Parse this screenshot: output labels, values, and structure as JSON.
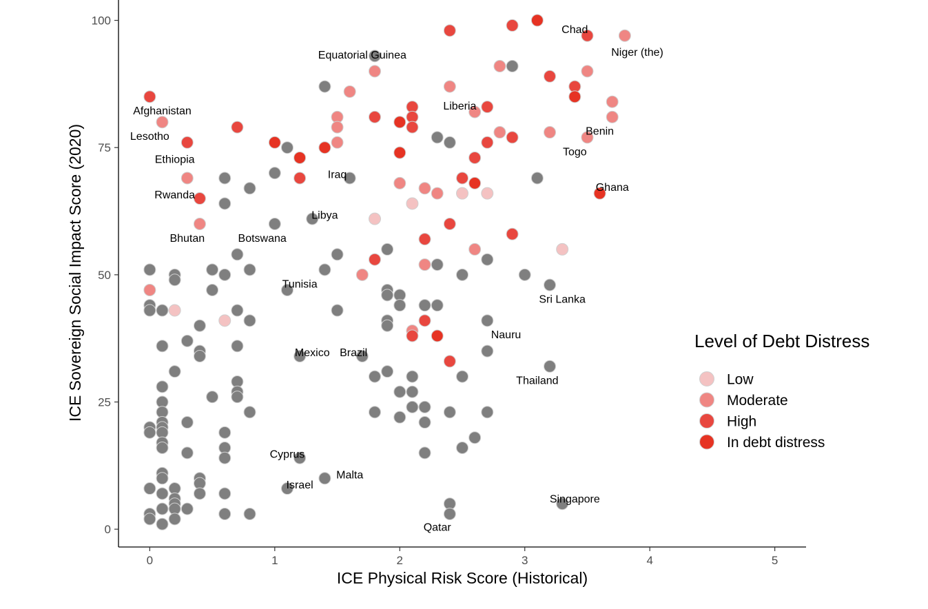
{
  "chart_data": {
    "type": "scatter",
    "xlabel": "ICE Physical Risk Score (Historical)",
    "ylabel": "ICE Sovereign Social Impact Score (2020)",
    "xlim": [
      -0.25,
      5.25
    ],
    "ylim": [
      -3.5,
      104
    ],
    "x_ticks": [
      0,
      1,
      2,
      3,
      4,
      5
    ],
    "y_ticks": [
      0,
      25,
      50,
      75,
      100
    ],
    "grid": false,
    "legend": {
      "title": "Level of Debt Distress",
      "position": "right",
      "entries": [
        {
          "label": "Low",
          "color": "#f4c2c2"
        },
        {
          "label": "Moderate",
          "color": "#ef8683"
        },
        {
          "label": "High",
          "color": "#e8473f"
        },
        {
          "label": "In debt distress",
          "color": "#e63323"
        }
      ]
    },
    "colors": {
      "none": "#7f7f7f",
      "low": "#f4c2c2",
      "moderate": "#ef8683",
      "high": "#e8473f",
      "distress": "#e63323"
    },
    "points": [
      [
        0,
        85,
        "high"
      ],
      [
        0.1,
        80,
        "moderate"
      ],
      [
        0.3,
        76,
        "high"
      ],
      [
        0.3,
        69,
        "moderate"
      ],
      [
        0.4,
        65,
        "high"
      ],
      [
        0.4,
        60,
        "moderate"
      ],
      [
        0.7,
        79,
        "high"
      ],
      [
        1.0,
        76,
        "distress"
      ],
      [
        1.2,
        73,
        "distress"
      ],
      [
        1.2,
        69,
        "high"
      ],
      [
        1.4,
        75,
        "distress"
      ],
      [
        1.5,
        81,
        "moderate"
      ],
      [
        1.5,
        79,
        "moderate"
      ],
      [
        1.5,
        76,
        "moderate"
      ],
      [
        1.6,
        86,
        "moderate"
      ],
      [
        1.8,
        90,
        "moderate"
      ],
      [
        1.8,
        81,
        "high"
      ],
      [
        2.0,
        80,
        "distress"
      ],
      [
        2.0,
        74,
        "distress"
      ],
      [
        2.1,
        83,
        "high"
      ],
      [
        2.1,
        81,
        "high"
      ],
      [
        2.1,
        79,
        "high"
      ],
      [
        2.0,
        68,
        "moderate"
      ],
      [
        2.1,
        64,
        "low"
      ],
      [
        2.2,
        67,
        "moderate"
      ],
      [
        2.3,
        66,
        "moderate"
      ],
      [
        2.4,
        98,
        "high"
      ],
      [
        2.4,
        87,
        "moderate"
      ],
      [
        2.5,
        69,
        "high"
      ],
      [
        2.5,
        66,
        "low"
      ],
      [
        2.6,
        82,
        "moderate"
      ],
      [
        2.6,
        73,
        "high"
      ],
      [
        2.6,
        68,
        "distress"
      ],
      [
        2.7,
        83,
        "high"
      ],
      [
        2.7,
        76,
        "high"
      ],
      [
        2.7,
        66,
        "low"
      ],
      [
        2.8,
        91,
        "moderate"
      ],
      [
        2.8,
        78,
        "moderate"
      ],
      [
        2.9,
        99,
        "high"
      ],
      [
        2.9,
        77,
        "high"
      ],
      [
        3.1,
        100,
        "distress"
      ],
      [
        3.2,
        89,
        "high"
      ],
      [
        3.2,
        78,
        "moderate"
      ],
      [
        3.4,
        87,
        "high"
      ],
      [
        3.4,
        85,
        "distress"
      ],
      [
        3.5,
        97,
        "high"
      ],
      [
        3.5,
        90,
        "moderate"
      ],
      [
        3.5,
        77,
        "moderate"
      ],
      [
        3.7,
        84,
        "moderate"
      ],
      [
        3.7,
        81,
        "moderate"
      ],
      [
        3.8,
        97,
        "moderate"
      ],
      [
        3.6,
        66,
        "distress"
      ],
      [
        3.3,
        55,
        "low"
      ],
      [
        2.9,
        58,
        "high"
      ],
      [
        2.6,
        55,
        "moderate"
      ],
      [
        2.4,
        60,
        "high"
      ],
      [
        2.2,
        57,
        "high"
      ],
      [
        2.2,
        52,
        "moderate"
      ],
      [
        1.8,
        61,
        "low"
      ],
      [
        1.8,
        53,
        "high"
      ],
      [
        1.7,
        50,
        "moderate"
      ],
      [
        2.2,
        41,
        "high"
      ],
      [
        2.1,
        39,
        "moderate"
      ],
      [
        2.1,
        38,
        "high"
      ],
      [
        2.3,
        38,
        "distress"
      ],
      [
        2.4,
        33,
        "high"
      ],
      [
        0,
        47,
        "moderate"
      ],
      [
        0.2,
        43,
        "low"
      ],
      [
        0.6,
        41,
        "low"
      ],
      [
        1.8,
        93,
        "none"
      ],
      [
        1.4,
        87,
        "none"
      ],
      [
        2.9,
        91,
        "none"
      ],
      [
        2.3,
        77,
        "none"
      ],
      [
        2.4,
        76,
        "none"
      ],
      [
        1.1,
        75,
        "none"
      ],
      [
        1.0,
        70,
        "none"
      ],
      [
        0.6,
        69,
        "none"
      ],
      [
        0.8,
        67,
        "none"
      ],
      [
        0.6,
        64,
        "none"
      ],
      [
        1.6,
        69,
        "none"
      ],
      [
        3.1,
        69,
        "none"
      ],
      [
        1.3,
        61,
        "none"
      ],
      [
        1.0,
        60,
        "none"
      ],
      [
        0.7,
        54,
        "none"
      ],
      [
        1.5,
        54,
        "none"
      ],
      [
        1.9,
        55,
        "none"
      ],
      [
        2.3,
        52,
        "none"
      ],
      [
        2.7,
        53,
        "none"
      ],
      [
        2.5,
        50,
        "none"
      ],
      [
        3.0,
        50,
        "none"
      ],
      [
        3.2,
        48,
        "none"
      ],
      [
        0,
        51,
        "none"
      ],
      [
        0.2,
        50,
        "none"
      ],
      [
        0.2,
        49,
        "none"
      ],
      [
        0.5,
        51,
        "none"
      ],
      [
        0.6,
        50,
        "none"
      ],
      [
        0.8,
        51,
        "none"
      ],
      [
        1.4,
        51,
        "none"
      ],
      [
        0.5,
        47,
        "none"
      ],
      [
        1.1,
        47,
        "none"
      ],
      [
        1.9,
        47,
        "none"
      ],
      [
        1.9,
        46,
        "none"
      ],
      [
        2.0,
        46,
        "none"
      ],
      [
        2.0,
        44,
        "none"
      ],
      [
        2.2,
        44,
        "none"
      ],
      [
        2.3,
        44,
        "none"
      ],
      [
        0,
        44,
        "none"
      ],
      [
        0,
        43,
        "none"
      ],
      [
        0.1,
        43,
        "none"
      ],
      [
        0.7,
        43,
        "none"
      ],
      [
        1.5,
        43,
        "none"
      ],
      [
        0.4,
        40,
        "none"
      ],
      [
        0.8,
        41,
        "none"
      ],
      [
        1.9,
        41,
        "none"
      ],
      [
        1.9,
        40,
        "none"
      ],
      [
        2.7,
        41,
        "none"
      ],
      [
        0.3,
        37,
        "none"
      ],
      [
        0.1,
        36,
        "none"
      ],
      [
        0.4,
        35,
        "none"
      ],
      [
        0.4,
        34,
        "none"
      ],
      [
        0.7,
        36,
        "none"
      ],
      [
        1.2,
        34,
        "none"
      ],
      [
        1.7,
        34,
        "none"
      ],
      [
        2.7,
        35,
        "none"
      ],
      [
        3.2,
        32,
        "none"
      ],
      [
        0.2,
        31,
        "none"
      ],
      [
        0.7,
        29,
        "none"
      ],
      [
        0.1,
        28,
        "none"
      ],
      [
        0.7,
        27,
        "none"
      ],
      [
        0.7,
        26,
        "none"
      ],
      [
        0.5,
        26,
        "none"
      ],
      [
        1.8,
        30,
        "none"
      ],
      [
        1.9,
        31,
        "none"
      ],
      [
        2.1,
        30,
        "none"
      ],
      [
        2.5,
        30,
        "none"
      ],
      [
        2.0,
        27,
        "none"
      ],
      [
        2.1,
        27,
        "none"
      ],
      [
        0.1,
        25,
        "none"
      ],
      [
        0.1,
        23,
        "none"
      ],
      [
        0.8,
        23,
        "none"
      ],
      [
        1.8,
        23,
        "none"
      ],
      [
        2.1,
        24,
        "none"
      ],
      [
        2.2,
        24,
        "none"
      ],
      [
        2.4,
        23,
        "none"
      ],
      [
        2.7,
        23,
        "none"
      ],
      [
        2.0,
        22,
        "none"
      ],
      [
        2.2,
        21,
        "none"
      ],
      [
        0.1,
        21,
        "none"
      ],
      [
        0.3,
        21,
        "none"
      ],
      [
        0,
        20,
        "none"
      ],
      [
        0,
        19,
        "none"
      ],
      [
        0.1,
        20,
        "none"
      ],
      [
        0.1,
        19,
        "none"
      ],
      [
        0.6,
        19,
        "none"
      ],
      [
        0.1,
        17,
        "none"
      ],
      [
        0.1,
        16,
        "none"
      ],
      [
        0.6,
        16,
        "none"
      ],
      [
        0.3,
        15,
        "none"
      ],
      [
        0.6,
        14,
        "none"
      ],
      [
        1.2,
        14,
        "none"
      ],
      [
        2.2,
        15,
        "none"
      ],
      [
        2.6,
        18,
        "none"
      ],
      [
        2.5,
        16,
        "none"
      ],
      [
        0.1,
        11,
        "none"
      ],
      [
        0.1,
        10,
        "none"
      ],
      [
        0.4,
        10,
        "none"
      ],
      [
        0.4,
        9,
        "none"
      ],
      [
        0,
        8,
        "none"
      ],
      [
        0.2,
        8,
        "none"
      ],
      [
        0.1,
        7,
        "none"
      ],
      [
        0.4,
        7,
        "none"
      ],
      [
        0.6,
        7,
        "none"
      ],
      [
        1.1,
        8,
        "none"
      ],
      [
        1.4,
        10,
        "none"
      ],
      [
        0.2,
        6,
        "none"
      ],
      [
        0.2,
        5,
        "none"
      ],
      [
        0.2,
        4,
        "none"
      ],
      [
        0.1,
        4,
        "none"
      ],
      [
        0.3,
        4,
        "none"
      ],
      [
        0,
        3,
        "none"
      ],
      [
        0,
        2,
        "none"
      ],
      [
        0.2,
        2,
        "none"
      ],
      [
        0.1,
        1,
        "none"
      ],
      [
        0.6,
        3,
        "none"
      ],
      [
        0.8,
        3,
        "none"
      ],
      [
        2.4,
        5,
        "none"
      ],
      [
        2.4,
        3,
        "none"
      ],
      [
        3.3,
        5,
        "none"
      ]
    ],
    "annotations": [
      {
        "text": "Chad",
        "x": 3.4,
        "y": 97.5
      },
      {
        "text": "Niger (the)",
        "x": 3.9,
        "y": 93
      },
      {
        "text": "Equatorial Guinea",
        "x": 1.7,
        "y": 92.5
      },
      {
        "text": "Afghanistan",
        "x": 0.1,
        "y": 81.5
      },
      {
        "text": "Liberia",
        "x": 2.48,
        "y": 82.5
      },
      {
        "text": "Lesotho",
        "x": 0,
        "y": 76.5
      },
      {
        "text": "Benin",
        "x": 3.6,
        "y": 77.5
      },
      {
        "text": "Ethiopia",
        "x": 0.2,
        "y": 72
      },
      {
        "text": "Togo",
        "x": 3.4,
        "y": 73.5
      },
      {
        "text": "Iraq",
        "x": 1.5,
        "y": 69
      },
      {
        "text": "Rwanda",
        "x": 0.2,
        "y": 65
      },
      {
        "text": "Ghana",
        "x": 3.7,
        "y": 66.5
      },
      {
        "text": "Libya",
        "x": 1.4,
        "y": 61
      },
      {
        "text": "Bhutan",
        "x": 0.3,
        "y": 56.5
      },
      {
        "text": "Botswana",
        "x": 0.9,
        "y": 56.5
      },
      {
        "text": "Tunisia",
        "x": 1.2,
        "y": 47.5
      },
      {
        "text": "Sri Lanka",
        "x": 3.3,
        "y": 44.5
      },
      {
        "text": "Nauru",
        "x": 2.85,
        "y": 37.5
      },
      {
        "text": "Mexico",
        "x": 1.3,
        "y": 34
      },
      {
        "text": "Brazil",
        "x": 1.63,
        "y": 34
      },
      {
        "text": "Thailand",
        "x": 3.1,
        "y": 28.5
      },
      {
        "text": "Cyprus",
        "x": 1.1,
        "y": 14
      },
      {
        "text": "Malta",
        "x": 1.6,
        "y": 10
      },
      {
        "text": "Israel",
        "x": 1.2,
        "y": 8
      },
      {
        "text": "Singapore",
        "x": 3.4,
        "y": 5.2
      },
      {
        "text": "Qatar",
        "x": 2.3,
        "y": -0.3
      }
    ]
  }
}
